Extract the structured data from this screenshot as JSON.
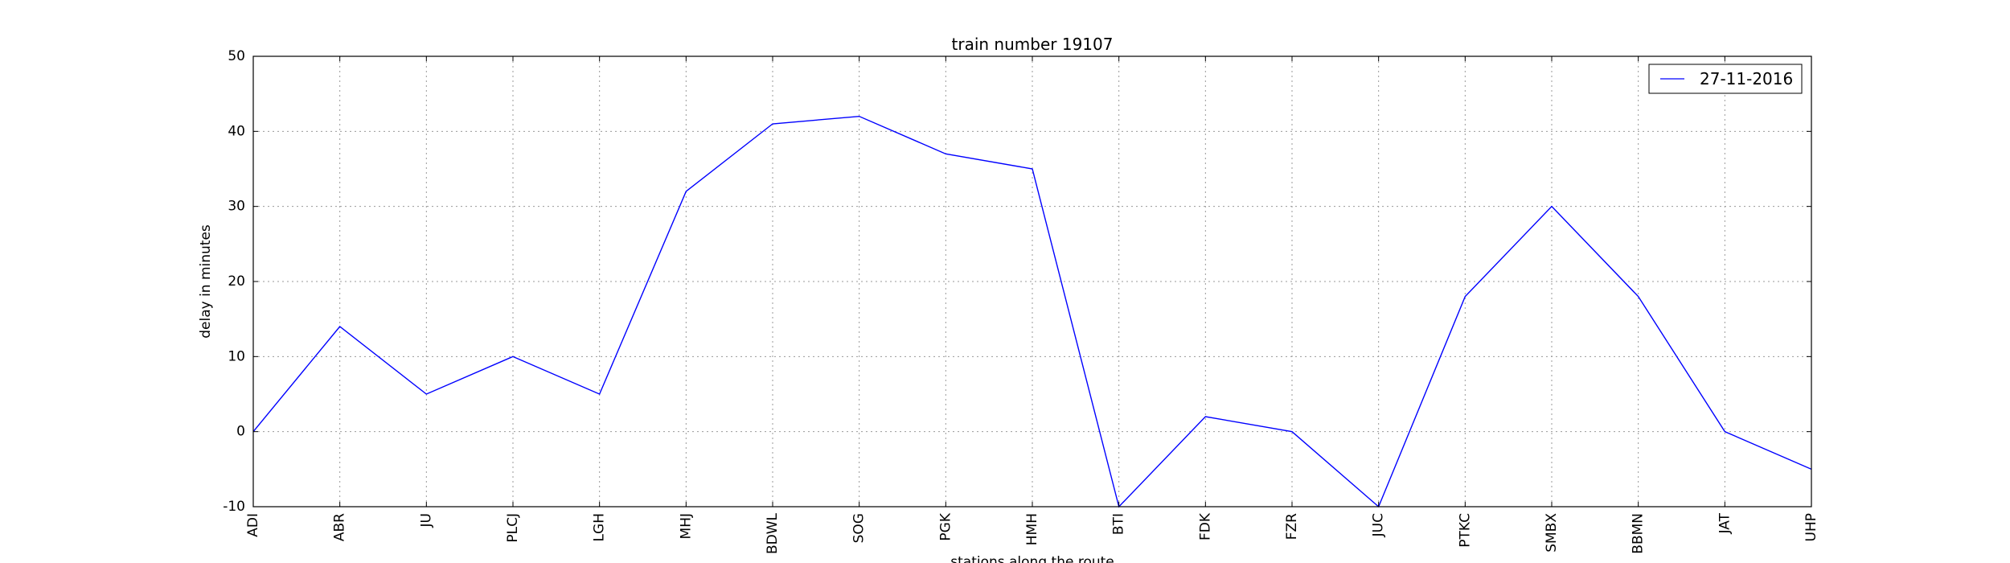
{
  "chart_data": {
    "type": "line",
    "title": "train number 19107",
    "xlabel": "stations along the route",
    "ylabel": "delay in minutes",
    "categories": [
      "ADI",
      "ABR",
      "JU",
      "PLCJ",
      "LGH",
      "MHJ",
      "BDWL",
      "SOG",
      "PGK",
      "HMH",
      "BTI",
      "FDK",
      "FZR",
      "JUC",
      "PTKC",
      "SMBX",
      "BBMN",
      "JAT",
      "UHP"
    ],
    "series": [
      {
        "name": "27-11-2016",
        "color": "#0000ff",
        "values": [
          0,
          14,
          5,
          10,
          5,
          32,
          41,
          42,
          37,
          35,
          -10,
          2,
          0,
          -10,
          18,
          30,
          18,
          0,
          -5
        ]
      }
    ],
    "ylim": [
      -10,
      50
    ],
    "yticks": [
      -10,
      0,
      10,
      20,
      30,
      40,
      50
    ],
    "grid": true,
    "legend_position": "top-right"
  }
}
